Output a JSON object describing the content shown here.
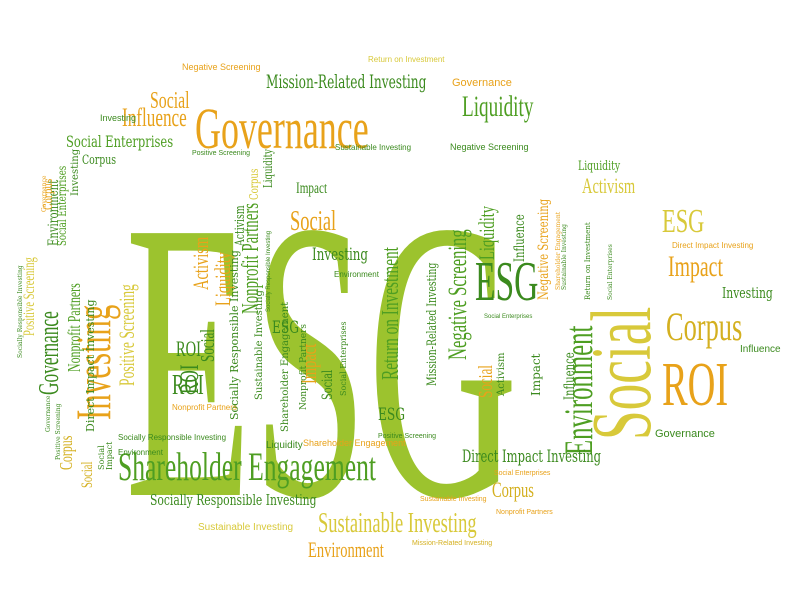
{
  "colors": {
    "light_green": "#9CC32E",
    "green": "#4E9E22",
    "dark_green": "#3B8A1E",
    "orange": "#E8A21A",
    "gold": "#D4B020",
    "yellow": "#D8C93A"
  },
  "words": {
    "esg_big": "ESG",
    "governance_big": "Governance",
    "shareholder_engagement": "Shareholder Engagement",
    "social_big": "Social",
    "environment_big": "Environment",
    "investing_big": "Investing",
    "governance_left": "Governance",
    "roi_right": "ROI",
    "corpus_right": "Corpus",
    "esg_mid": "ESG",
    "esg_right": "ESG",
    "impact_right": "Impact",
    "liquidity_top": "Liquidity",
    "mission_related_top": "Mission-Related Investing",
    "sustainable_investing_bottom": "Sustainable Investing",
    "environment_bottom": "Environment",
    "social_influence": "Social",
    "influence_top": "Influence",
    "social_enterprises_top": "Social Enterprises",
    "corpus_top": "Corpus",
    "positive_screening_small": "Positive Screening",
    "negative_screening_top": "Negative Screening",
    "sustainable_investing_small": "Sustainable Investing",
    "governance_top": "Governance",
    "return_on_investment_top": "Return on Investment",
    "negative_screening_topleft": "Negative Screening",
    "investing_left_small": "Investing",
    "investing_right": "Investing",
    "influence_right": "Influence",
    "governance_right": "Governance",
    "activism_right": "Activism",
    "liquidity_right": "Liquidity",
    "direct_impact_right": "Direct Impact Investing",
    "direct_impact_bottom": "Direct Impact Investing",
    "social_enterprises_bottom": "Social Enterprises",
    "corpus_bottom": "Corpus",
    "sustainable_investing_tiny": "Sustainable Investing",
    "nonprofit_partners_tiny": "Nonprofit Partners",
    "mission_related_bottom": "Mission-Related Investing",
    "socially_responsible_bottom": "Socially Responsible Investing",
    "socially_responsible_left": "Socially Responsible Investing",
    "sustainable_investing_bottom_small": "Sustainable Investing",
    "shareholder_engagement_small": "Shareholder Engagement",
    "liquidity_bottom": "Liquidity",
    "roi_center": "ROI",
    "social_center": "Social",
    "impact_center": "Impact",
    "investing_center": "Investing",
    "environment_center": "Environment",
    "social_mid": "Social",
    "impact_mid": "Impact",
    "return_on_investment_vertical": "Return on Investment",
    "negative_screening_vertical": "Negative Screening",
    "liquidity_vertical": "Liquidity",
    "influence_vertical": "Influence",
    "mission_related_vertical": "Mission-Related Investing",
    "social_vertical_small": "Social",
    "activism_vertical_small": "Activism",
    "impact_vertical_small": "Impact",
    "influence_vertical_mid": "Influence",
    "activism_left": "Activism",
    "liquidity_left": "Liquidity",
    "nonprofit_partners_left": "Nonprofit Partners",
    "activism_small": "Activism",
    "sustainable_investing_vertical": "Sustainable Investing",
    "social_left_v": "Social",
    "roi_left_v": "ROI",
    "positive_screening_left": "Positive Screening",
    "direct_impact_left": "Direct Impact Investing",
    "nonprofit_partners_far_left": "Nonprofit Partners",
    "positive_screening_far_left": "Positive Screening",
    "corpus_left_v": "Corpus",
    "social_enterprises_left_v": "Social Enterprises",
    "environment_left_v": "Environment",
    "socially_responsible_left_tiny": "Socially Responsible Investing",
    "governance_left_tiny": "Governance",
    "corpus_left_small": "Corpus",
    "social_left_small": "Social",
    "nonprofit_partners_left_h": "Nonprofit Partners",
    "esg_small_center": "ESG",
    "roi_small": "ROI",
    "social_small": "Social",
    "impact_small": "Impact",
    "nonprofit_partners_v": "Nonprofit Partners",
    "socially_responsible_v": "Socially Responsible Investing",
    "shareholder_engagement_v": "Shareholder Engagement",
    "sustainable_investing_right_tiny": "Sustainable Investing",
    "shareholder_engagement_right_tiny": "Shareholder Engagement",
    "social_enterprises_center_tiny": "Social Enterprises",
    "positive_screening_tiny": "Positive Screening",
    "social_enterprises_right_tiny": "Social Enterprises",
    "environment_small_bottom": "Environment",
    "socially_responsible_tiny_center": "Socially Responsible Investing"
  }
}
